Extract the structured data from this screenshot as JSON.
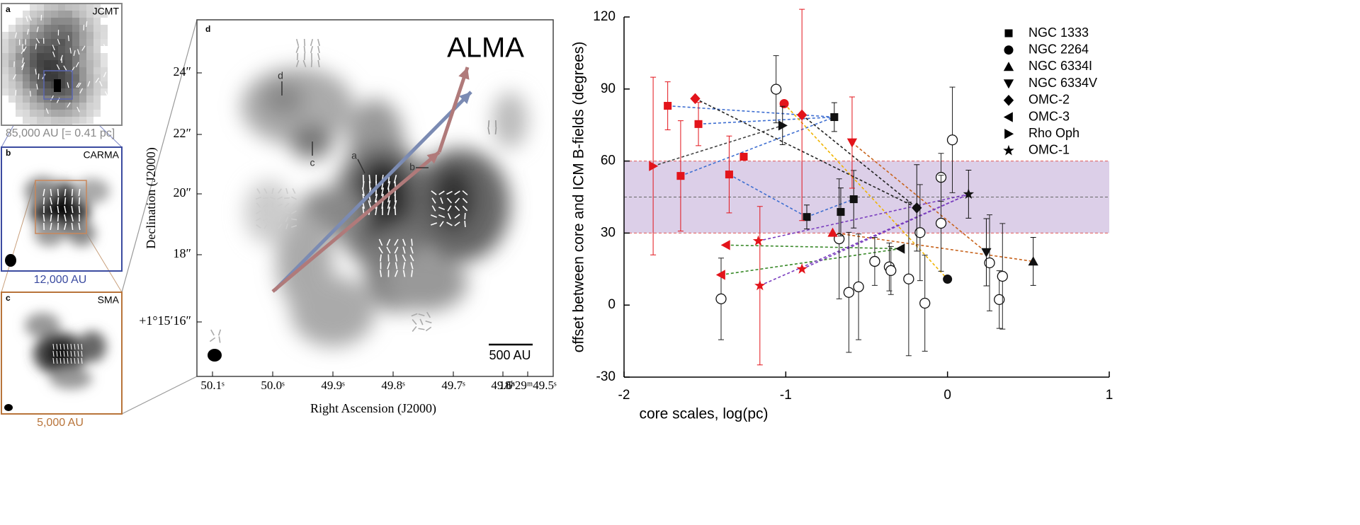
{
  "image_panels": [
    {
      "letter": "a",
      "instrument": "JCMT",
      "scale": "85,000 AU [= 0.41 pc]"
    },
    {
      "letter": "b",
      "instrument": "CARMA",
      "scale": "12,000 AU"
    },
    {
      "letter": "c",
      "instrument": "SMA",
      "scale": "5,000 AU"
    },
    {
      "letter": "d",
      "instrument": "ALMA",
      "scale": "500 AU",
      "annotations": [
        "d",
        "c",
        "a",
        "b"
      ],
      "xlabel": "Right Ascension (J2000)",
      "ylabel": "Declination (J2000)",
      "ytick_labels": [
        "24″",
        "22″",
        "20″",
        "18″",
        "+1°15′16″"
      ],
      "xtick_labels": [
        "50.1ˢ",
        "50.0ˢ",
        "49.9ˢ",
        "49.8ˢ",
        "49.7ˢ",
        "49.6ˢ",
        "18ʰ29ᵐ49.5ˢ"
      ]
    }
  ],
  "chart_data": {
    "type": "scatter",
    "xlabel": "core scales, log(pc)",
    "ylabel": "offset between core and ICM B-fields (degrees)",
    "xlim": [
      -2,
      1
    ],
    "xticks": [
      -2,
      -1,
      0,
      1
    ],
    "ylim": [
      -30,
      120
    ],
    "yticks": [
      -30,
      0,
      30,
      60,
      90,
      120
    ],
    "legend": "upper right",
    "band": {
      "ylim": [
        30,
        60
      ],
      "center": 45,
      "color": "#dccfe8",
      "edge_color": "#e05a5a",
      "center_color": "#666666"
    },
    "series": [
      {
        "name": "NGC 1333",
        "marker": "square",
        "line_color": "#3f6fd1",
        "x": [
          -1.73,
          -1.54,
          -1.65,
          -1.35,
          -1.26,
          -0.7,
          -0.87,
          -0.66,
          -0.58
        ],
        "values": [
          83,
          75.4,
          53.8,
          54.4,
          61.8,
          78.3,
          36.7,
          38.8,
          44.1
        ],
        "errors": [
          10,
          9,
          23,
          16,
          null,
          6,
          5,
          10,
          12
        ],
        "point_colors": [
          "#e3141b",
          "#e3141b",
          "#e3141b",
          "#e3141b",
          "#e3141b",
          "#111111",
          "#111111",
          "#111111",
          "#111111"
        ],
        "links": [
          [
            0,
            5
          ],
          [
            1,
            5
          ],
          [
            2,
            5
          ],
          [
            3,
            6
          ],
          [
            6,
            8
          ]
        ]
      },
      {
        "name": "NGC 2264",
        "marker": "circle",
        "line_color": "#f0b400",
        "x": [
          -1.01,
          0.0
        ],
        "values": [
          83.9,
          10.8
        ],
        "errors": [
          null,
          null
        ],
        "point_colors": [
          "#e3141b",
          "#111111"
        ],
        "links": [
          [
            0,
            1
          ]
        ]
      },
      {
        "name": "NGC 6334I",
        "marker": "triangle-up",
        "line_color": "#c8641e",
        "x": [
          -0.71,
          0.53
        ],
        "values": [
          30.2,
          18.2
        ],
        "errors": [
          null,
          10
        ],
        "point_colors": [
          "#e3141b",
          "#111111"
        ],
        "links": [
          [
            0,
            1
          ]
        ]
      },
      {
        "name": "NGC 6334V",
        "marker": "triangle-down",
        "line_color": "#c8641e",
        "x": [
          -0.59,
          0.24
        ],
        "values": [
          67.7,
          22
        ],
        "errors": [
          19,
          14
        ],
        "point_colors": [
          "#e3141b",
          "#111111"
        ],
        "links": [
          [
            0,
            1
          ]
        ]
      },
      {
        "name": "OMC-2",
        "marker": "diamond",
        "line_color": "#222222",
        "x": [
          -1.56,
          -0.9,
          -0.19
        ],
        "values": [
          86,
          79.2,
          40.5
        ],
        "errors": [
          null,
          44,
          18
        ],
        "point_colors": [
          "#e3141b",
          "#e3141b",
          "#111111"
        ],
        "links": [
          [
            0,
            2
          ],
          [
            1,
            2
          ]
        ]
      },
      {
        "name": "OMC-3",
        "marker": "triangle-left",
        "line_color": "#3a8a2a",
        "x": [
          -1.37,
          -1.4,
          -0.29
        ],
        "values": [
          25,
          12.6,
          23.5
        ],
        "errors": [
          null,
          null,
          null
        ],
        "point_colors": [
          "#e3141b",
          "#e3141b",
          "#111111"
        ],
        "links": [
          [
            0,
            2
          ],
          [
            1,
            2
          ]
        ]
      },
      {
        "name": "Rho Oph",
        "marker": "triangle-right",
        "line_color": "#444444",
        "x": [
          -1.82,
          -1.02
        ],
        "values": [
          57.9,
          74.8
        ],
        "errors": [
          37,
          8
        ],
        "point_colors": [
          "#e3141b",
          "#111111"
        ],
        "links": [
          [
            0,
            1
          ]
        ]
      },
      {
        "name": "OMC-1",
        "marker": "star",
        "line_color": "#7b3fbf",
        "x": [
          -1.17,
          -1.16,
          -0.9,
          0.13
        ],
        "values": [
          26.7,
          8.1,
          15,
          46.2
        ],
        "errors": [
          null,
          33,
          null,
          10
        ],
        "point_colors": [
          "#e3141b",
          "#e3141b",
          "#e3141b",
          "#111111"
        ],
        "links": [
          [
            0,
            3
          ],
          [
            1,
            3
          ],
          [
            2,
            3
          ]
        ]
      }
    ],
    "open_points": {
      "x": [
        -1.06,
        -1.4,
        -0.67,
        -0.61,
        -0.55,
        -0.45,
        -0.36,
        -0.35,
        -0.24,
        -0.17,
        -0.14,
        -0.04,
        -0.04,
        0.03,
        0.26,
        0.32,
        0.34
      ],
      "values": [
        89.9,
        2.6,
        27.6,
        5.3,
        7.6,
        18.2,
        15.9,
        14.4,
        10.9,
        30.2,
        0.8,
        53.2,
        34.1,
        68.8,
        17.6,
        2.3,
        12.0
      ],
      "errors": [
        14,
        17,
        25,
        25,
        22,
        10,
        10,
        10,
        32,
        20,
        20,
        10,
        20,
        22,
        20,
        12,
        22
      ]
    }
  }
}
